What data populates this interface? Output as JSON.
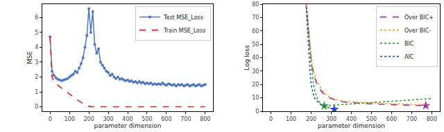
{
  "chart_data": [
    {
      "type": "line",
      "x_label": "parameter dimension",
      "y_label": "MSE",
      "xlim": [
        -40,
        840
      ],
      "xticks": [
        0,
        100,
        200,
        300,
        400,
        500,
        600,
        700,
        800
      ],
      "ylim": [
        -0.3,
        6.9
      ],
      "yticks": [
        0,
        1,
        2,
        3,
        4,
        5,
        6
      ],
      "grid": false,
      "legend": "top right",
      "x": [
        0,
        10,
        20,
        30,
        40,
        50,
        60,
        70,
        80,
        90,
        100,
        110,
        120,
        130,
        140,
        150,
        160,
        170,
        180,
        190,
        200,
        210,
        220,
        230,
        240,
        250,
        260,
        270,
        280,
        290,
        300,
        310,
        320,
        330,
        340,
        350,
        360,
        370,
        380,
        390,
        400,
        410,
        420,
        430,
        440,
        450,
        460,
        470,
        480,
        490,
        500,
        510,
        520,
        530,
        540,
        550,
        560,
        570,
        580,
        590,
        600,
        610,
        620,
        630,
        640,
        650,
        660,
        670,
        680,
        690,
        700,
        710,
        720,
        730,
        740,
        750,
        760,
        770,
        780,
        790,
        800
      ],
      "series": [
        {
          "name": "Test MSE_Loss",
          "color": "#4a77c4",
          "line_style": "solid",
          "marker": "circle",
          "values": [
            4.7,
            2.4,
            2.1,
            1.95,
            1.85,
            1.8,
            1.75,
            1.8,
            1.85,
            1.9,
            2.0,
            2.1,
            2.2,
            2.4,
            2.3,
            2.6,
            2.9,
            3.3,
            4.0,
            4.8,
            6.6,
            5.0,
            6.4,
            4.2,
            3.6,
            3.9,
            3.0,
            2.8,
            2.6,
            2.4,
            2.3,
            2.1,
            2.2,
            2.0,
            1.9,
            2.0,
            1.85,
            1.9,
            1.8,
            1.75,
            1.8,
            1.7,
            1.75,
            1.65,
            1.7,
            1.6,
            1.7,
            1.6,
            1.65,
            1.55,
            1.6,
            1.55,
            1.6,
            1.5,
            1.55,
            1.5,
            1.55,
            1.5,
            1.6,
            1.5,
            1.45,
            1.55,
            1.5,
            1.45,
            1.5,
            1.4,
            1.5,
            1.45,
            1.5,
            1.4,
            1.45,
            1.5,
            1.4,
            1.45,
            1.5,
            1.4,
            1.45,
            1.5,
            1.4,
            1.45,
            1.5
          ]
        },
        {
          "name": "Train MSE_Loss",
          "color": "#e02020",
          "line_style": "dashed",
          "values": [
            4.7,
            2.0,
            1.7,
            1.55,
            1.45,
            1.35,
            1.25,
            1.15,
            1.05,
            0.95,
            0.85,
            0.75,
            0.65,
            0.55,
            0.45,
            0.38,
            0.3,
            0.22,
            0.15,
            0.08,
            0.03,
            0,
            0,
            0,
            0,
            0,
            0,
            0,
            0,
            0,
            0,
            0,
            0,
            0,
            0,
            0,
            0,
            0,
            0,
            0,
            0,
            0,
            0,
            0,
            0,
            0,
            0,
            0,
            0,
            0,
            0,
            0,
            0,
            0,
            0,
            0,
            0,
            0,
            0,
            0,
            0,
            0,
            0,
            0,
            0,
            0,
            0,
            0,
            0,
            0,
            0,
            0,
            0,
            0,
            0,
            0,
            0,
            0,
            0,
            0,
            0
          ]
        }
      ]
    },
    {
      "type": "line",
      "x_label": "parameter dimension",
      "y_label": "Log loss",
      "xlim": [
        -40,
        840
      ],
      "xticks": [
        0,
        100,
        200,
        300,
        400,
        500,
        600,
        700,
        800
      ],
      "ylim": [
        0,
        80
      ],
      "yticks": [
        0,
        10,
        20,
        30,
        40,
        50,
        60,
        70,
        80
      ],
      "grid": false,
      "legend": "top right",
      "series": [
        {
          "name": "Over BIC+",
          "color": "#9b2fae",
          "line_style": "dashed",
          "marker": "star",
          "x": [
            175,
            185,
            195,
            205,
            215,
            230,
            250,
            270,
            290,
            310,
            330,
            360,
            400,
            450,
            500,
            550,
            600,
            650,
            700,
            750,
            770
          ],
          "values": [
            80,
            62,
            45,
            33,
            26,
            20,
            15,
            12,
            10,
            9,
            8,
            7,
            6.5,
            6,
            5.5,
            5.2,
            5,
            4.8,
            4.6,
            4.4,
            4.2
          ],
          "optimum": {
            "x": 770,
            "y": 4.2
          }
        },
        {
          "name": "Over BIC-",
          "color": "#ff9f1c",
          "line_style": "dotted",
          "x": [
            175,
            185,
            195,
            205,
            215,
            230,
            250,
            270,
            290,
            310,
            330,
            360,
            400,
            450,
            500,
            550,
            600,
            650,
            700,
            750,
            780
          ],
          "values": [
            79,
            64,
            47,
            35,
            28,
            22,
            17,
            13,
            11,
            9.5,
            8.5,
            7.5,
            7,
            6.5,
            6,
            5.8,
            5.6,
            5.4,
            5.2,
            5,
            4.9
          ]
        },
        {
          "name": "BIC",
          "color": "#2ca02c",
          "line_style": "dotted",
          "marker": "star",
          "x": [
            180,
            190,
            200,
            210,
            220,
            230,
            240,
            250,
            265,
            300,
            400,
            500,
            600,
            700,
            800
          ],
          "values": [
            75,
            55,
            35,
            22,
            14,
            10,
            7,
            5,
            4,
            4.5,
            5.5,
            6.5,
            7.5,
            8.5,
            9.5
          ],
          "optimum": {
            "x": 265,
            "y": 4
          }
        },
        {
          "name": "AIC",
          "color": "#1f4fd6",
          "line_style": "dotted",
          "marker": "star",
          "x": [
            175,
            180,
            185,
            190,
            195,
            200,
            210,
            220,
            240,
            260,
            280,
            300,
            315,
            320
          ],
          "values": [
            78,
            65,
            50,
            38,
            28,
            20,
            13,
            9,
            6,
            4,
            3,
            2,
            1.5,
            1.8
          ],
          "optimum": {
            "x": 315,
            "y": 1.5
          }
        }
      ]
    }
  ]
}
